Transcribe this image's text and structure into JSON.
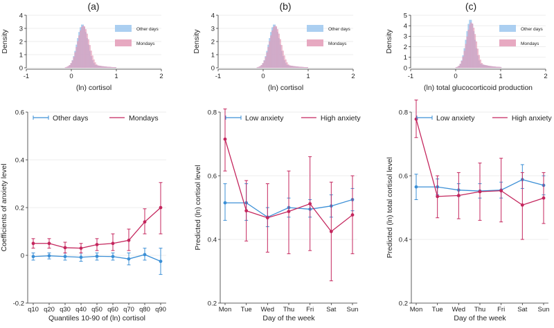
{
  "panel_titles": [
    "(a)",
    "(b)",
    "(c)"
  ],
  "colors": {
    "blue": "#3b8fd6",
    "red": "#c4265d",
    "blue_fill": "#9cc7ee",
    "red_fill": "#e39ab6"
  },
  "chart_data": [
    {
      "type": "histogram",
      "panel": "(a)",
      "xlabel": "(ln) cortisol",
      "ylabel": "Density",
      "xlim": [
        -1,
        2
      ],
      "ylim": [
        0,
        4
      ],
      "xticks": [
        "-1",
        "0",
        "1",
        "2"
      ],
      "yticks": [
        "0",
        "1",
        "2",
        "3",
        "4"
      ],
      "series": [
        {
          "name": "Other days",
          "color": "#9cc7ee",
          "mean": 0.25,
          "sd": 0.12,
          "peak": 3.3,
          "range": [
            -0.2,
            1.0
          ]
        },
        {
          "name": "Mondays",
          "color": "#e39ab6",
          "mean": 0.27,
          "sd": 0.13,
          "peak": 3.2,
          "range": [
            -0.2,
            1.0
          ]
        }
      ]
    },
    {
      "type": "histogram",
      "panel": "(b)",
      "xlabel": "(ln) cortisol",
      "ylabel": "Density",
      "xlim": [
        -1,
        2
      ],
      "ylim": [
        0,
        4
      ],
      "xticks": [
        "-1",
        "0",
        "1",
        "2"
      ],
      "yticks": [
        "0",
        "1",
        "2",
        "3",
        "4"
      ],
      "series": [
        {
          "name": "Other days",
          "color": "#9cc7ee",
          "mean": 0.25,
          "sd": 0.12,
          "peak": 3.3,
          "range": [
            -0.2,
            1.0
          ]
        },
        {
          "name": "Mondays",
          "color": "#e39ab6",
          "mean": 0.27,
          "sd": 0.13,
          "peak": 3.2,
          "range": [
            -0.2,
            1.0
          ]
        }
      ]
    },
    {
      "type": "histogram",
      "panel": "(c)",
      "xlabel": "(ln) total glucocorticoid production",
      "ylabel": "Density",
      "xlim": [
        -1,
        2
      ],
      "ylim": [
        0,
        5
      ],
      "xticks": [
        "-1",
        "0",
        "1",
        "2"
      ],
      "yticks": [
        "0",
        "1",
        "2",
        "3",
        "4",
        "5"
      ],
      "series": [
        {
          "name": "Other days",
          "color": "#9cc7ee",
          "mean": 0.33,
          "sd": 0.1,
          "peak": 4.6,
          "range": [
            0.0,
            1.0
          ]
        },
        {
          "name": "Mondays",
          "color": "#e39ab6",
          "mean": 0.35,
          "sd": 0.11,
          "peak": 4.3,
          "range": [
            0.0,
            1.0
          ]
        }
      ]
    },
    {
      "type": "line",
      "panel": "(a)",
      "xlabel": "Quantiles 10-90 of (ln) cortisol",
      "ylabel": "Coefficients of anxiety level",
      "categories": [
        "q10",
        "q20",
        "q30",
        "q40",
        "q50",
        "q60",
        "q70",
        "q80",
        "q90"
      ],
      "ylim": [
        -0.2,
        0.6
      ],
      "yticks": [
        "-0.2",
        "0",
        "0.2",
        "0.4",
        "0.6"
      ],
      "series": [
        {
          "name": "Other days",
          "color": "#3b8fd6",
          "values": [
            -0.005,
            -0.002,
            -0.005,
            -0.008,
            -0.004,
            -0.005,
            -0.015,
            0.003,
            -0.025
          ],
          "lower": [
            -0.02,
            -0.015,
            -0.02,
            -0.025,
            -0.02,
            -0.02,
            -0.04,
            -0.02,
            -0.08
          ],
          "upper": [
            0.01,
            0.01,
            0.01,
            0.01,
            0.01,
            0.01,
            0.01,
            0.03,
            0.03
          ]
        },
        {
          "name": "Mondays",
          "color": "#c4265d",
          "values": [
            0.05,
            0.05,
            0.032,
            0.03,
            0.045,
            0.05,
            0.063,
            0.14,
            0.2
          ],
          "lower": [
            0.03,
            0.03,
            0.01,
            0.01,
            0.02,
            0.02,
            0.02,
            0.09,
            0.09
          ],
          "upper": [
            0.07,
            0.07,
            0.055,
            0.05,
            0.07,
            0.09,
            0.11,
            0.195,
            0.305
          ]
        }
      ]
    },
    {
      "type": "line",
      "panel": "(b)",
      "xlabel": "Day of the week",
      "ylabel": "Predicted (ln) cortisol level",
      "categories": [
        "Mon",
        "Tue",
        "Wed",
        "Thu",
        "Fri",
        "Sat",
        "Sun"
      ],
      "ylim": [
        0.2,
        0.8
      ],
      "yticks": [
        "0.2",
        "0.4",
        "0.6",
        "0.8"
      ],
      "series": [
        {
          "name": "Low anxiety",
          "color": "#3b8fd6",
          "values": [
            0.515,
            0.515,
            0.47,
            0.5,
            0.495,
            0.505,
            0.525
          ],
          "lower": [
            0.46,
            0.46,
            0.44,
            0.47,
            0.47,
            0.47,
            0.49
          ],
          "upper": [
            0.575,
            0.575,
            0.5,
            0.53,
            0.525,
            0.54,
            0.56
          ]
        },
        {
          "name": "High anxiety",
          "color": "#c4265d",
          "values": [
            0.715,
            0.49,
            0.468,
            0.488,
            0.512,
            0.425,
            0.477
          ],
          "lower": [
            0.615,
            0.395,
            0.36,
            0.355,
            0.365,
            0.27,
            0.355
          ],
          "upper": [
            0.81,
            0.585,
            0.575,
            0.615,
            0.66,
            0.58,
            0.6
          ]
        }
      ]
    },
    {
      "type": "line",
      "panel": "(c)",
      "xlabel": "Day of the week",
      "ylabel": "Predicted (ln) total cortisol level",
      "categories": [
        "Mon",
        "Tue",
        "Wed",
        "Thu",
        "Fri",
        "Sat",
        "Sun"
      ],
      "ylim": [
        0.2,
        0.8
      ],
      "yticks": [
        "0.2",
        "0.4",
        "0.6",
        "0.8"
      ],
      "series": [
        {
          "name": "Low anxiety",
          "color": "#3b8fd6",
          "values": [
            0.565,
            0.565,
            0.555,
            0.552,
            0.555,
            0.588,
            0.57
          ],
          "lower": [
            0.525,
            0.54,
            0.535,
            0.53,
            0.53,
            0.56,
            0.54
          ],
          "upper": [
            0.605,
            0.59,
            0.575,
            0.575,
            0.58,
            0.635,
            0.6
          ]
        },
        {
          "name": "High anxiety",
          "color": "#c4265d",
          "values": [
            0.778,
            0.535,
            0.538,
            0.55,
            0.553,
            0.508,
            0.53
          ],
          "lower": [
            0.72,
            0.468,
            0.465,
            0.46,
            0.455,
            0.4,
            0.45
          ],
          "upper": [
            0.838,
            0.6,
            0.61,
            0.64,
            0.655,
            0.61,
            0.61
          ]
        }
      ]
    }
  ]
}
